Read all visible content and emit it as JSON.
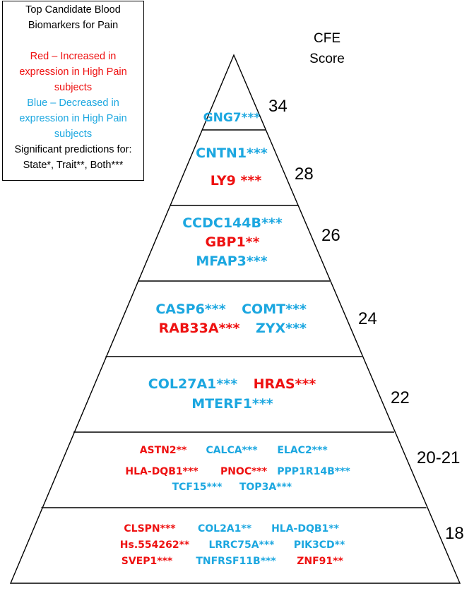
{
  "legend": {
    "title_line1": "Top Candidate Blood",
    "title_line2": "Biomarkers for Pain",
    "red_line1": "Red – Increased in",
    "red_line2": "expression in High Pain",
    "red_line3": "subjects",
    "blue_line1": "Blue – Decreased in",
    "blue_line2": "expression in High Pain",
    "blue_line3": "subjects",
    "sig_line1": "Significant predictions for:",
    "sig_line2": "State*, Trait**, Both***"
  },
  "header": {
    "cfe_line1": "CFE",
    "cfe_line2": "Score"
  },
  "colors": {
    "red": "#ee1111",
    "blue": "#1ca7e0",
    "outline": "#000000"
  },
  "tiers": [
    {
      "score": "34",
      "genes": [
        {
          "name": "GNG7***",
          "color": "blue"
        }
      ]
    },
    {
      "score": "28",
      "genes": [
        {
          "name": "CNTN1***",
          "color": "blue"
        },
        {
          "name": "LY9 ***",
          "color": "red"
        }
      ]
    },
    {
      "score": "26",
      "genes": [
        {
          "name": "CCDC144B***",
          "color": "blue"
        },
        {
          "name": "GBP1**",
          "color": "red"
        },
        {
          "name": "MFAP3***",
          "color": "blue"
        }
      ]
    },
    {
      "score": "24",
      "genes": [
        {
          "name": "CASP6***",
          "color": "blue"
        },
        {
          "name": "COMT***",
          "color": "blue"
        },
        {
          "name": "RAB33A***",
          "color": "red"
        },
        {
          "name": "ZYX***",
          "color": "blue"
        }
      ]
    },
    {
      "score": "22",
      "genes": [
        {
          "name": "COL27A1***",
          "color": "blue"
        },
        {
          "name": "HRAS***",
          "color": "red"
        },
        {
          "name": "MTERF1***",
          "color": "blue"
        }
      ]
    },
    {
      "score": "20-21",
      "genes": [
        {
          "name": "ASTN2**",
          "color": "red"
        },
        {
          "name": "CALCA***",
          "color": "blue"
        },
        {
          "name": "ELAC2***",
          "color": "blue"
        },
        {
          "name": "HLA-DQB1***",
          "color": "red"
        },
        {
          "name": "PNOC***",
          "color": "red"
        },
        {
          "name": "PPP1R14B***",
          "color": "blue"
        },
        {
          "name": "TCF15***",
          "color": "blue"
        },
        {
          "name": "TOP3A***",
          "color": "blue"
        }
      ]
    },
    {
      "score": "18",
      "genes": [
        {
          "name": "CLSPN***",
          "color": "red"
        },
        {
          "name": "COL2A1**",
          "color": "blue"
        },
        {
          "name": "HLA-DQB1**",
          "color": "blue"
        },
        {
          "name": "Hs.554262**",
          "color": "red"
        },
        {
          "name": "LRRC75A***",
          "color": "blue"
        },
        {
          "name": "PIK3CD**",
          "color": "blue"
        },
        {
          "name": "SVEP1***",
          "color": "red"
        },
        {
          "name": "TNFRSF11B***",
          "color": "blue"
        },
        {
          "name": "ZNF91**",
          "color": "red"
        }
      ]
    }
  ]
}
